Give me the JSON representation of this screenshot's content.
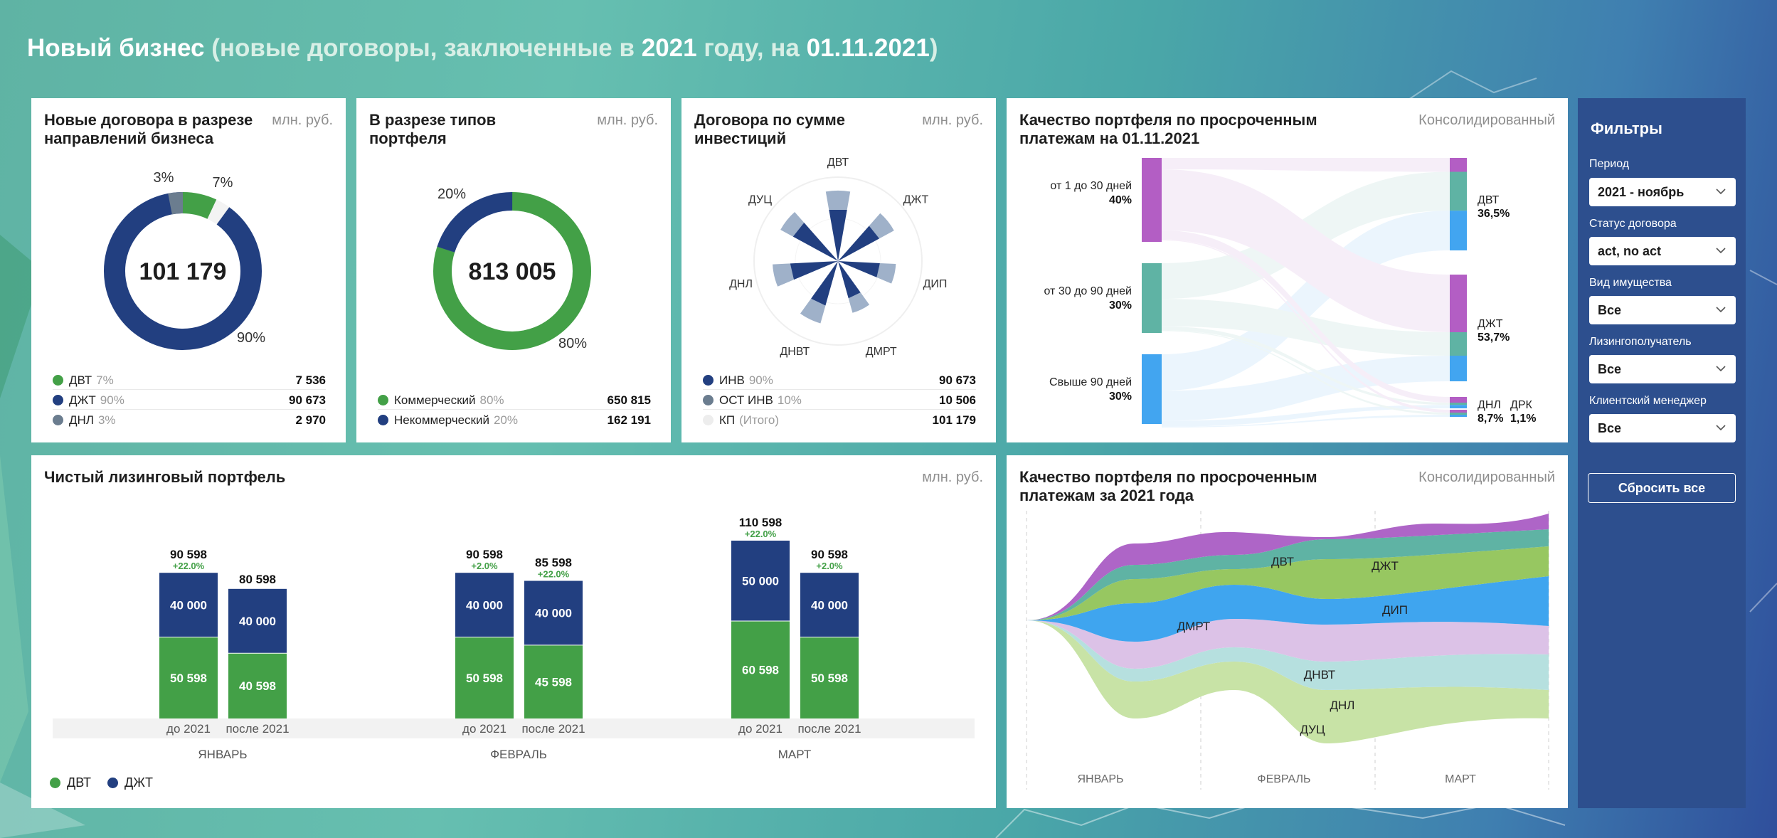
{
  "page": {
    "title_main": "Новый бизнес",
    "title_sub": "(новые договоры, заключенные в ",
    "title_year": "2021",
    "title_mid": " году, на ",
    "title_date": "01.11.2021",
    "title_close": ")"
  },
  "card1": {
    "title_line1": "Новые договора в разрезе",
    "title_line2": "направлений бизнеса",
    "unit": "млн. руб.",
    "total": "101 179",
    "legend": [
      {
        "name": "ДВТ",
        "pct": "7%",
        "value": "7 536",
        "color": "#43a047"
      },
      {
        "name": "ДЖТ",
        "pct": "90%",
        "value": "90 673",
        "color": "#223f80"
      },
      {
        "name": "ДНЛ",
        "pct": "3%",
        "value": "2 970",
        "color": "#6b7d8f"
      }
    ]
  },
  "card2": {
    "title_line1": "В разрезе типов",
    "title_line2": "портфеля",
    "unit": "млн. руб.",
    "total": "813 005",
    "legend": [
      {
        "name": "Коммерческий",
        "pct": "80%",
        "value": "650 815",
        "color": "#43a047"
      },
      {
        "name": "Некоммерческий",
        "pct": "20%",
        "value": "162 191",
        "color": "#223f80"
      }
    ]
  },
  "card3": {
    "title_line1": "Договора по сумме",
    "title_line2": "инвестиций",
    "unit": "млн. руб.",
    "legend": [
      {
        "name": "ИНВ",
        "pct": "90%",
        "value": "90 673",
        "color": "#223f80"
      },
      {
        "name": "ОСТ ИНВ",
        "pct": "10%",
        "value": "10 506",
        "color": "#6b7d8f"
      },
      {
        "name": "КП",
        "pct": "(Итого)",
        "value": "101 179",
        "color": "#ededed"
      }
    ]
  },
  "card4": {
    "title_line1": "Качество портфеля по просроченным",
    "title_line2": "платежам на 01.11.2021",
    "unit": "Консолидированный"
  },
  "card5": {
    "title": "Чистый лизинговый портфель",
    "unit": "млн. руб.",
    "legend": [
      {
        "name": "ДВТ",
        "color": "#43a047"
      },
      {
        "name": "ДЖТ",
        "color": "#223f80"
      }
    ]
  },
  "card6": {
    "title_line1": "Качество портфеля по просроченным",
    "title_line2": "платежам за 2021 года",
    "unit": "Консолидированный"
  },
  "filters": {
    "title": "Фильтры",
    "items": [
      {
        "label": "Период",
        "value": "2021 - ноябрь"
      },
      {
        "label": "Статус договора",
        "value": "act, no act"
      },
      {
        "label": "Вид  имущества",
        "value": "Все"
      },
      {
        "label": "Лизингополучатель",
        "value": "Все"
      },
      {
        "label": "Клиентский менеджер",
        "value": "Все"
      }
    ],
    "reset_label": "Сбросить все"
  },
  "chart_data": [
    {
      "type": "pie",
      "title": "Новые договора в разрезе направлений бизнеса",
      "categories": [
        "ДВТ",
        "ДЖТ",
        "ДНЛ"
      ],
      "values": [
        7536,
        90673,
        2970
      ],
      "slice_labels": [
        "7%",
        "90%",
        "3%"
      ],
      "colors": [
        "#43a047",
        "#223f80",
        "#6b7d8f"
      ]
    },
    {
      "type": "pie",
      "title": "В разрезе типов портфеля",
      "categories": [
        "Коммерческий",
        "Некоммерческий"
      ],
      "values": [
        650815,
        162191
      ],
      "slice_labels": [
        "80%",
        "20%"
      ],
      "colors": [
        "#43a047",
        "#223f80"
      ]
    },
    {
      "type": "radial-bar",
      "title": "Договора по сумме инвестиций",
      "categories": [
        "ДВТ",
        "ДЖТ",
        "ДИП",
        "ДМРТ",
        "ДНВТ",
        "ДНЛ",
        "ДУЦ"
      ],
      "series": [
        {
          "name": "ИНВ",
          "values": [
            0.62,
            0.56,
            0.5,
            0.46,
            0.55,
            0.57,
            0.61
          ]
        },
        {
          "name": "ОСТ ИНВ",
          "values": [
            0.22,
            0.2,
            0.19,
            0.18,
            0.22,
            0.21,
            0.17
          ]
        }
      ],
      "colors": [
        "#223f80",
        "#9fb1c9"
      ]
    },
    {
      "type": "sankey",
      "title": "Качество портфеля по просроченным платежам на 01.11.2021",
      "sources": [
        {
          "name": "от 1 до 30 дней",
          "pct": "40%",
          "value": 40,
          "color": "#b35ec4"
        },
        {
          "name": "от 30 до 90 дней",
          "pct": "30%",
          "value": 30,
          "color": "#5fb3a4"
        },
        {
          "name": "Свыше 90  дней",
          "pct": "30%",
          "value": 30,
          "color": "#42a5f0"
        }
      ],
      "targets": [
        {
          "name": "ДВТ",
          "pct": "36,5%",
          "value": 36.5
        },
        {
          "name": "ДЖТ",
          "pct": "53,7%",
          "value": 53.7
        },
        {
          "name": "ДНЛ",
          "pct": "8,7%",
          "value": 8.7
        },
        {
          "name": "ДРК",
          "pct": "1,1%",
          "value": 1.1
        }
      ],
      "target_splits": [
        [
          0.15,
          0.42,
          0.43
        ],
        [
          0.54,
          0.22,
          0.24
        ],
        [
          0.5,
          0.2,
          0.3
        ],
        [
          0.4,
          0.3,
          0.3
        ]
      ]
    },
    {
      "type": "bar",
      "title": "Чистый лизинговый портфель",
      "stacked": true,
      "groups": [
        "ЯНВАРЬ",
        "ФЕВРАЛЬ",
        "МАРТ"
      ],
      "categories": [
        "до 2021",
        "после 2021"
      ],
      "series": [
        {
          "name": "ДВТ",
          "color": "#43a047",
          "values": [
            [
              50598,
              40598
            ],
            [
              50598,
              45598
            ],
            [
              60598,
              50598
            ]
          ]
        },
        {
          "name": "ДЖТ",
          "color": "#223f80",
          "values": [
            [
              40000,
              40000
            ],
            [
              40000,
              40000
            ],
            [
              50000,
              40000
            ]
          ]
        }
      ],
      "totals": [
        [
          "90 598",
          "80 598"
        ],
        [
          "90 598",
          "85 598"
        ],
        [
          "110 598",
          "90 598"
        ]
      ],
      "growth": [
        [
          "+22.0%",
          ""
        ],
        [
          "+2.0%",
          "+22.0%"
        ],
        [
          "+22.0%",
          "+2.0%"
        ]
      ],
      "segment_labels": {
        "ДВТ": [
          [
            "50 598",
            "40 598"
          ],
          [
            "50 598",
            "45 598"
          ],
          [
            "60 598",
            "50 598"
          ]
        ],
        "ДЖТ": [
          [
            "40 000",
            "40 000"
          ],
          [
            "40 000",
            "40 000"
          ],
          [
            "50 000",
            "40 000"
          ]
        ]
      },
      "ylim": [
        0,
        120000
      ]
    },
    {
      "type": "area",
      "title": "Качество портфеля по просроченным платежам за 2021 года",
      "x": [
        "ЯНВАРЬ",
        "ФЕВРАЛЬ",
        "МАРТ"
      ],
      "series": [
        {
          "name": "ДУЦ",
          "color": "#c8e3a6"
        },
        {
          "name": "ДНЛ",
          "color": "#b6e0df"
        },
        {
          "name": "ДНВТ",
          "color": "#dcc2e7"
        },
        {
          "name": "ДМРТ",
          "color": "#3fa5ef"
        },
        {
          "name": "ДИП",
          "color": "#97c761"
        },
        {
          "name": "ДЖТ",
          "color": "#5fb3a4"
        },
        {
          "name": "ДВТ",
          "color": "#ae65c7"
        }
      ]
    }
  ]
}
